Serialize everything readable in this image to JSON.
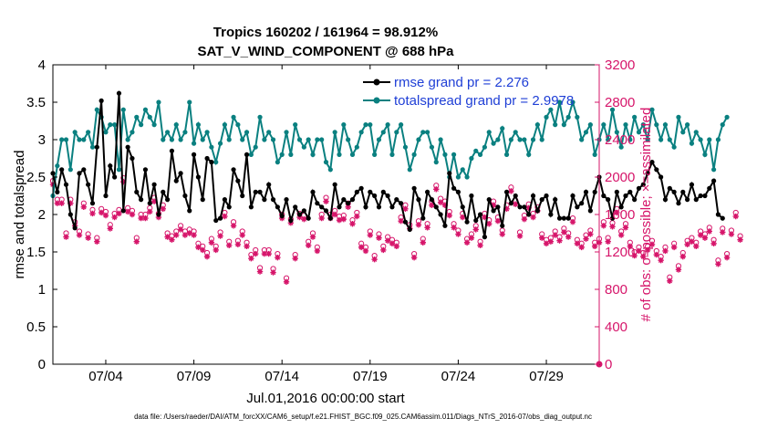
{
  "chart_data": {
    "type": "line",
    "title": "Tropics 160202 / 161964 = 98.912%",
    "subtitle": "SAT_V_WIND_COMPONENT @ 688 hPa",
    "xlabel": "Jul.01,2016 00:00:00 start",
    "ylabel_left": "rmse and totalspread",
    "ylabel_right": "# of obs: o=possible; ×=assimilated",
    "x_range_days": [
      1.0,
      32.0
    ],
    "x_ticks": [
      {
        "day": 4,
        "label": "07/04"
      },
      {
        "day": 9,
        "label": "07/09"
      },
      {
        "day": 14,
        "label": "07/14"
      },
      {
        "day": 19,
        "label": "07/19"
      },
      {
        "day": 24,
        "label": "07/24"
      },
      {
        "day": 29,
        "label": "07/29"
      }
    ],
    "ylim_left": [
      0,
      4
    ],
    "yticks_left": [
      "0",
      "0.5",
      "1",
      "1.5",
      "2",
      "2.5",
      "3",
      "3.5",
      "4"
    ],
    "ylim_right": [
      0,
      3200
    ],
    "yticks_right": [
      "0",
      "400",
      "800",
      "1200",
      "1600",
      "2000",
      "2400",
      "2800",
      "3200"
    ],
    "x_start_day": 1.0,
    "x_step_days": 0.25,
    "series": [
      {
        "name": "rmse",
        "legend": "rmse grand pr = 2.276",
        "color": "#000000",
        "axis": "left",
        "values": [
          2.55,
          2.3,
          2.6,
          2.4,
          2.0,
          1.82,
          2.55,
          2.6,
          2.4,
          2.15,
          2.9,
          3.52,
          2.25,
          2.65,
          2.5,
          3.62,
          2.05,
          2.9,
          2.75,
          2.3,
          2.2,
          2.6,
          2.15,
          2.4,
          2.0,
          2.3,
          2.2,
          2.85,
          2.45,
          2.55,
          2.25,
          2.05,
          2.8,
          2.5,
          2.2,
          2.75,
          2.7,
          1.92,
          1.95,
          2.2,
          2.1,
          2.6,
          2.45,
          2.25,
          2.8,
          2.1,
          2.3,
          2.3,
          2.2,
          2.4,
          2.2,
          2.1,
          1.98,
          2.2,
          1.92,
          2.1,
          2.0,
          2.05,
          1.95,
          2.3,
          2.15,
          2.1,
          2.05,
          1.95,
          2.4,
          2.1,
          2.2,
          2.15,
          2.2,
          2.3,
          2.35,
          2.1,
          2.3,
          2.25,
          2.1,
          2.3,
          2.25,
          2.1,
          2.2,
          2.15,
          1.9,
          1.8,
          2.35,
          2.2,
          1.95,
          2.3,
          2.2,
          2.1,
          2.0,
          1.85,
          2.55,
          2.35,
          2.3,
          2.1,
          1.9,
          2.25,
          1.92,
          2.0,
          1.7,
          2.2,
          2.05,
          2.1,
          1.85,
          2.3,
          2.15,
          2.25,
          2.1,
          2.1,
          2.0,
          2.25,
          2.05,
          2.2,
          2.25,
          2.0,
          2.2,
          1.95,
          1.95,
          1.95,
          2.25,
          2.1,
          2.15,
          2.3,
          2.05,
          2.3,
          2.5,
          2.25,
          2.2,
          1.95,
          2.3,
          2.1,
          2.25,
          2.3,
          2.2,
          2.35,
          2.4,
          2.55,
          2.7,
          2.6,
          2.5,
          2.2,
          2.35,
          2.3,
          2.15,
          2.3,
          2.2,
          2.4,
          2.2,
          2.25,
          2.25,
          2.35,
          2.45,
          2.0,
          1.95
        ]
      },
      {
        "name": "totalspread",
        "legend": "totalspread grand pr = 2.9978",
        "color": "#0a8080",
        "axis": "left",
        "values": [
          2.25,
          2.65,
          3.0,
          3.0,
          2.6,
          3.1,
          3.0,
          3.0,
          3.1,
          2.9,
          3.4,
          3.3,
          3.1,
          3.2,
          3.2,
          2.6,
          3.4,
          3.0,
          3.1,
          3.3,
          3.2,
          3.4,
          3.3,
          3.2,
          3.5,
          3.0,
          3.1,
          3.0,
          3.2,
          3.0,
          3.1,
          3.5,
          2.95,
          3.2,
          3.0,
          3.1,
          2.9,
          2.7,
          2.95,
          3.2,
          3.0,
          3.3,
          3.2,
          3.0,
          3.1,
          2.8,
          2.9,
          3.3,
          3.0,
          3.1,
          3.0,
          2.7,
          2.8,
          3.1,
          2.8,
          3.2,
          3.0,
          2.9,
          3.0,
          2.8,
          3.0,
          3.0,
          2.7,
          2.6,
          3.1,
          2.8,
          3.2,
          3.0,
          2.8,
          2.9,
          3.1,
          3.2,
          3.2,
          2.8,
          3.0,
          3.1,
          3.2,
          2.8,
          3.1,
          3.2,
          2.9,
          2.6,
          2.8,
          3.0,
          3.1,
          3.1,
          2.9,
          2.7,
          3.0,
          2.8,
          2.5,
          2.8,
          2.5,
          2.6,
          2.5,
          2.75,
          2.85,
          2.8,
          2.9,
          3.1,
          2.95,
          3.0,
          3.15,
          2.8,
          3.0,
          3.1,
          3.0,
          3.0,
          2.8,
          3.0,
          3.2,
          3.0,
          3.3,
          3.4,
          3.2,
          3.5,
          3.2,
          3.3,
          3.5,
          3.3,
          3.0,
          3.1,
          3.2,
          2.8,
          3.0,
          3.2,
          3.0,
          3.4,
          3.1,
          2.9,
          3.2,
          3.0,
          3.3,
          3.1,
          3.2,
          3.0,
          3.4,
          3.2,
          3.0,
          3.2,
          3.0,
          2.9,
          3.3,
          3.1,
          3.2,
          2.95,
          3.1,
          3.0,
          2.8,
          3.0,
          2.6,
          3.0,
          3.2,
          3.3
        ]
      },
      {
        "name": "obs_assimilated",
        "marker": "asterisk",
        "color": "#d6156a",
        "axis": "right",
        "values": [
          1920,
          1720,
          1720,
          1360,
          1720,
          1480,
          1380,
          1680,
          1350,
          1610,
          1310,
          1620,
          1590,
          1450,
          1570,
          1610,
          1950,
          1630,
          1600,
          1310,
          1560,
          1560,
          1630,
          1740,
          1570,
          1660,
          1360,
          1330,
          1380,
          1440,
          1380,
          1400,
          1380,
          1250,
          1220,
          1150,
          1300,
          1220,
          1370,
          1580,
          1270,
          1480,
          1280,
          1380,
          1260,
          1130,
          1180,
          990,
          1180,
          1180,
          980,
          1140,
          1560,
          880,
          1510,
          1130,
          1570,
          1550,
          1270,
          1360,
          1210,
          1560,
          1740,
          1560,
          1600,
          1540,
          1550,
          1680,
          1500,
          1580,
          1250,
          1210,
          1380,
          1120,
          1350,
          1220,
          1320,
          1290,
          1260,
          1530,
          1660,
          1450,
          1140,
          1490,
          1300,
          1460,
          1700,
          1870,
          1730,
          1700,
          1590,
          1460,
          1390,
          1570,
          1300,
          1350,
          1440,
          1270,
          1570,
          1500,
          1700,
          1530,
          1390,
          1660,
          1850,
          1710,
          1370,
          1550,
          1670,
          1570,
          1640,
          1350,
          1290,
          1310,
          1380,
          1320,
          1410,
          1360,
          1520,
          1290,
          1250,
          1340,
          1390,
          1260,
          1300,
          1480,
          1310,
          1470,
          1620,
          1380,
          1460,
          1260,
          1160,
          1210,
          1150,
          1220,
          1280,
          1170,
          1110,
          1210,
          890,
          1250,
          1010,
          1150,
          1280,
          1310,
          1260,
          1380,
          1350,
          1420,
          1290,
          1070,
          1410,
          1140,
          1390,
          1580,
          1330
        ]
      },
      {
        "name": "obs_possible",
        "marker": "circle",
        "color": "#d6156a",
        "axis": "right",
        "values": [
          1960,
          1760,
          1760,
          1400,
          1760,
          1520,
          1420,
          1720,
          1390,
          1650,
          1350,
          1660,
          1630,
          1490,
          1610,
          1650,
          1990,
          1670,
          1640,
          1350,
          1600,
          1600,
          1670,
          1780,
          1610,
          1700,
          1400,
          1370,
          1420,
          1480,
          1420,
          1440,
          1420,
          1290,
          1260,
          1190,
          1340,
          1260,
          1410,
          1620,
          1310,
          1520,
          1320,
          1420,
          1300,
          1170,
          1220,
          1030,
          1220,
          1220,
          1020,
          1180,
          1600,
          920,
          1550,
          1170,
          1610,
          1590,
          1310,
          1400,
          1250,
          1600,
          1780,
          1600,
          1640,
          1580,
          1590,
          1720,
          1540,
          1620,
          1290,
          1250,
          1420,
          1160,
          1390,
          1260,
          1360,
          1330,
          1300,
          1570,
          1700,
          1490,
          1180,
          1530,
          1340,
          1500,
          1740,
          1910,
          1770,
          1740,
          1630,
          1500,
          1430,
          1610,
          1340,
          1390,
          1480,
          1310,
          1610,
          1540,
          1740,
          1570,
          1430,
          1700,
          1890,
          1750,
          1410,
          1590,
          1710,
          1610,
          1680,
          1390,
          1330,
          1350,
          1420,
          1360,
          1450,
          1400,
          1560,
          1330,
          1290,
          1380,
          1430,
          1300,
          1340,
          1520,
          1350,
          1510,
          1660,
          1420,
          1500,
          1300,
          1200,
          1250,
          1190,
          1260,
          1320,
          1210,
          1150,
          1250,
          930,
          1290,
          1050,
          1190,
          1320,
          1350,
          1300,
          1420,
          1390,
          1460,
          1330,
          1110,
          1450,
          1180,
          1430,
          1620,
          1370
        ]
      }
    ],
    "footnote": "data file: /Users/raeder/DAI/ATM_forcXX/CAM6_setup/f.e21.FHIST_BGC.f09_025.CAM6assim.011/Diags_NTrS_2016-07/obs_diag_output.nc"
  },
  "colors": {
    "left_axis": "#000000",
    "right_axis": "#d6156a",
    "legend_text": "#1f3fd6"
  }
}
